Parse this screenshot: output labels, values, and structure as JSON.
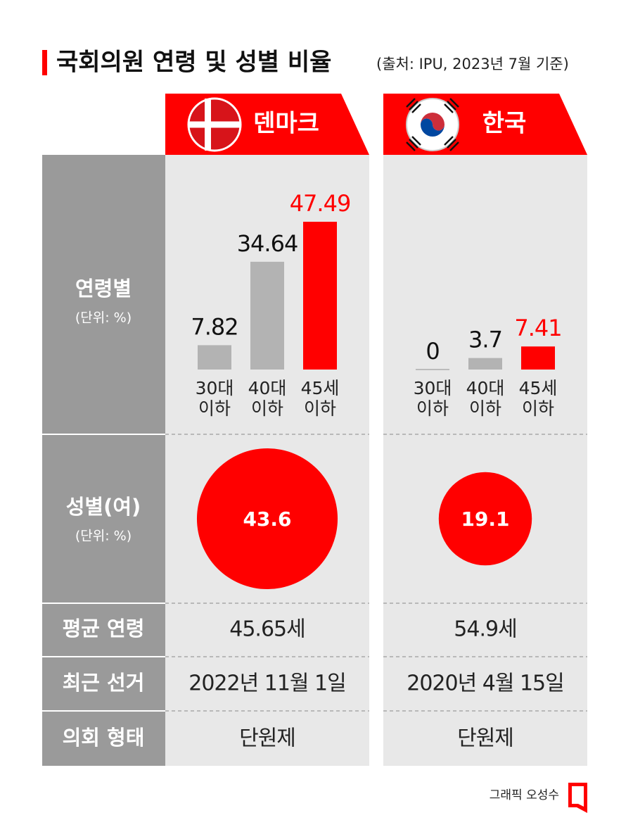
{
  "title": "국회의원 연령 및 성별 비율",
  "source": "(출처: IPU, 2023년 7월 기준)",
  "row_labels": {
    "age": "연령별",
    "age_unit": "(단위: %)",
    "gender": "성별(여)",
    "gender_unit": "(단위: %)",
    "avg_age": "평균 연령",
    "election": "최근 선거",
    "parliament": "의회 형태"
  },
  "age_categories": [
    [
      "30대",
      "이하"
    ],
    [
      "40대",
      "이하"
    ],
    [
      "45세",
      "이하"
    ]
  ],
  "bar_colors": [
    "#b3b3b3",
    "#b3b3b3",
    "#ff0000"
  ],
  "value_label_colors": [
    "#111111",
    "#111111",
    "#ff0000"
  ],
  "countries": [
    {
      "name": "덴마크",
      "age_values": [
        7.82,
        34.64,
        47.49
      ],
      "female_share": 43.6,
      "avg_age": "45.65세",
      "last_election": "2022년 11월 1일",
      "parliament": "단원제"
    },
    {
      "name": "한국",
      "age_values": [
        0,
        3.7,
        7.41
      ],
      "female_share": 19.1,
      "avg_age": "54.9세",
      "last_election": "2020년 4월 15일",
      "parliament": "단원제"
    }
  ],
  "credit": "그래픽 오성수"
}
